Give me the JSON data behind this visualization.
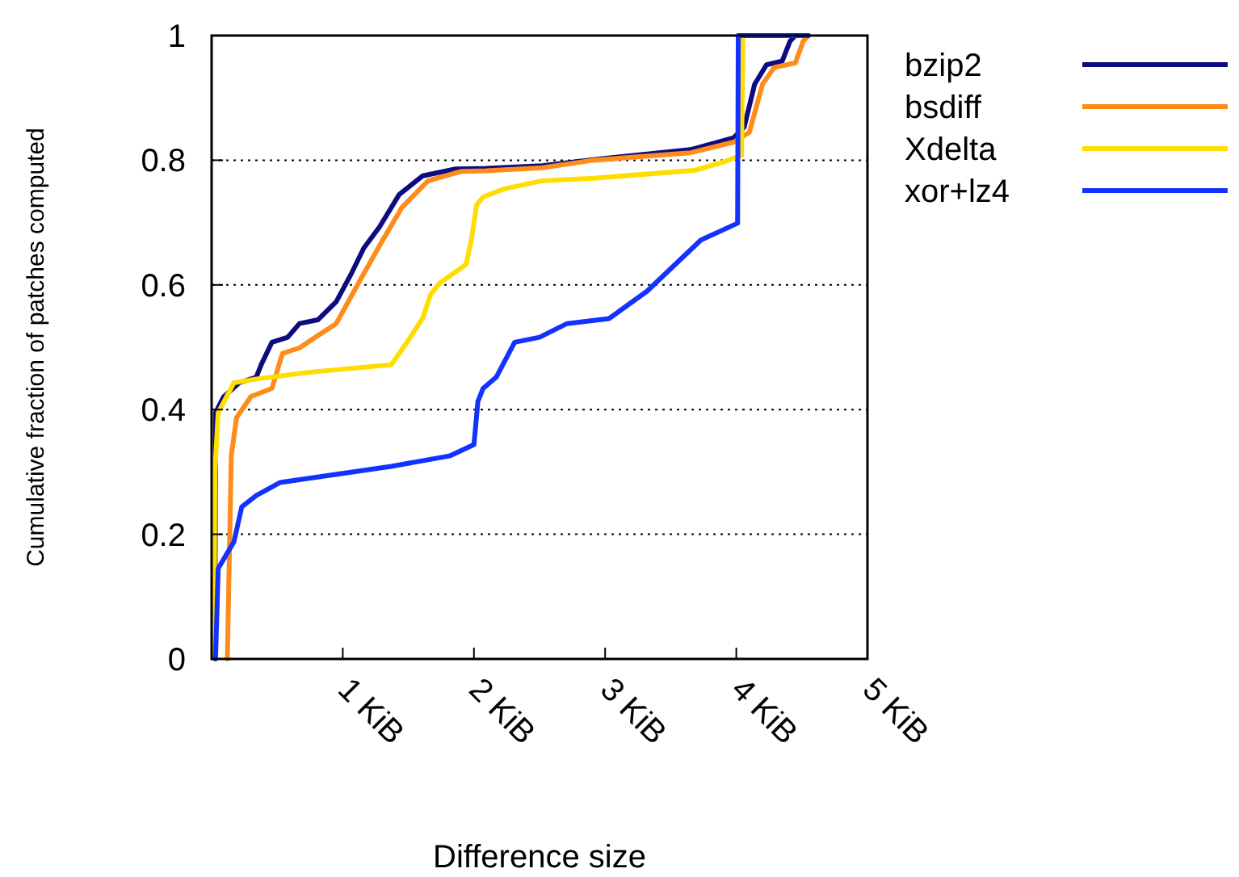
{
  "chart_data": {
    "type": "line",
    "xlabel": "Difference size",
    "ylabel": "Cumulative fraction of patches computed",
    "xlim": [
      0,
      5
    ],
    "ylim": [
      0,
      1
    ],
    "xticks": [
      {
        "value": 1,
        "label": "1 KiB"
      },
      {
        "value": 2,
        "label": "2 KiB"
      },
      {
        "value": 3,
        "label": "3 KiB"
      },
      {
        "value": 4,
        "label": "4 KiB"
      },
      {
        "value": 5,
        "label": "5 KiB"
      }
    ],
    "yticks": [
      0,
      0.2,
      0.4,
      0.6,
      0.8,
      1
    ],
    "grid": "y",
    "legend": "right",
    "marker": "none",
    "line_style": "solid",
    "series": [
      {
        "name": "bzip2",
        "color": "#0c0c80",
        "x": [
          0.025,
          0.03,
          0.09,
          0.21,
          0.34,
          0.38,
          0.46,
          0.58,
          0.67,
          0.81,
          0.95,
          1.06,
          1.16,
          1.28,
          1.43,
          1.61,
          1.86,
          2.09,
          2.52,
          2.91,
          3.65,
          3.98,
          4.06,
          4.14,
          4.23,
          4.35,
          4.41,
          4.45,
          4.55
        ],
        "values": [
          0,
          0.395,
          0.42,
          0.443,
          0.452,
          0.473,
          0.508,
          0.516,
          0.538,
          0.544,
          0.573,
          0.616,
          0.659,
          0.693,
          0.745,
          0.775,
          0.786,
          0.787,
          0.791,
          0.801,
          0.817,
          0.836,
          0.853,
          0.922,
          0.953,
          0.959,
          0.991,
          1,
          1
        ]
      },
      {
        "name": "bsdiff",
        "color": "#ff8c1a",
        "x": [
          0.12,
          0.15,
          0.19,
          0.3,
          0.46,
          0.54,
          0.67,
          0.79,
          0.95,
          1.12,
          1.28,
          1.45,
          1.65,
          1.9,
          2.09,
          2.52,
          2.91,
          3.65,
          3.98,
          4.1,
          4.2,
          4.29,
          4.45,
          4.51,
          4.55
        ],
        "values": [
          0,
          0.326,
          0.387,
          0.421,
          0.434,
          0.49,
          0.499,
          0.516,
          0.538,
          0.603,
          0.663,
          0.724,
          0.767,
          0.782,
          0.783,
          0.788,
          0.8,
          0.812,
          0.829,
          0.845,
          0.922,
          0.949,
          0.956,
          0.991,
          1
        ]
      },
      {
        "name": "Xdelta",
        "color": "#ffdd00",
        "x": [
          0.02,
          0.025,
          0.05,
          0.17,
          0.34,
          0.75,
          1.37,
          1.49,
          1.61,
          1.67,
          1.74,
          1.94,
          1.98,
          2.02,
          2.07,
          2.23,
          2.52,
          2.91,
          3.69,
          3.9,
          4.04,
          4.05,
          4.55
        ],
        "values": [
          0,
          0.3,
          0.395,
          0.443,
          0.449,
          0.46,
          0.472,
          0.508,
          0.547,
          0.585,
          0.603,
          0.633,
          0.672,
          0.728,
          0.741,
          0.754,
          0.767,
          0.771,
          0.784,
          0.797,
          0.808,
          1,
          1
        ]
      },
      {
        "name": "xor+lz4",
        "color": "#1432ff",
        "x": [
          0.03,
          0.05,
          0.17,
          0.23,
          0.34,
          0.52,
          1.37,
          1.82,
          2,
          2.03,
          2.07,
          2.17,
          2.31,
          2.5,
          2.71,
          3.03,
          3.32,
          3.73,
          4.01,
          4.015,
          4.55
        ],
        "values": [
          0,
          0.145,
          0.188,
          0.244,
          0.262,
          0.283,
          0.309,
          0.326,
          0.344,
          0.413,
          0.434,
          0.452,
          0.508,
          0.516,
          0.538,
          0.546,
          0.59,
          0.672,
          0.699,
          1,
          1
        ]
      }
    ]
  }
}
